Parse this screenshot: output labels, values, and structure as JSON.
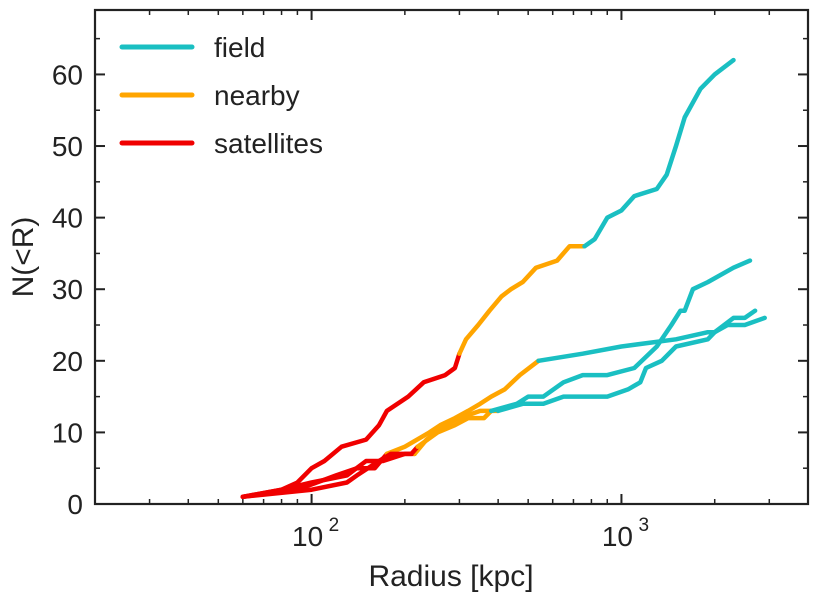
{
  "chart_data": {
    "type": "line",
    "title": "",
    "xlabel": "Radius [kpc]",
    "ylabel": "N(<R)",
    "xscale": "log",
    "xlim": [
      20,
      4000
    ],
    "ylim": [
      0,
      69
    ],
    "x_major_ticks": [
      {
        "value": 100,
        "base": "10",
        "exp": "2"
      },
      {
        "value": 1000,
        "base": "10",
        "exp": "3"
      }
    ],
    "y_ticks": [
      {
        "value": 0,
        "label": "0"
      },
      {
        "value": 10,
        "label": "10"
      },
      {
        "value": 20,
        "label": "20"
      },
      {
        "value": 30,
        "label": "30"
      },
      {
        "value": 40,
        "label": "40"
      },
      {
        "value": 50,
        "label": "50"
      },
      {
        "value": 60,
        "label": "60"
      }
    ],
    "legend": {
      "position": "top-left",
      "entries": [
        {
          "name": "field",
          "color": "#1ABFC2"
        },
        {
          "name": "nearby",
          "color": "#FFA500"
        },
        {
          "name": "satellites",
          "color": "#F00000"
        }
      ]
    },
    "curves": [
      {
        "name": "curve-A",
        "segments": [
          {
            "category": "satellites",
            "points": [
              [
                60,
                1
              ],
              [
                80,
                2
              ],
              [
                90,
                3
              ],
              [
                100,
                5
              ],
              [
                110,
                6
              ],
              [
                125,
                8
              ],
              [
                150,
                9
              ],
              [
                165,
                11
              ],
              [
                175,
                13
              ],
              [
                205,
                15
              ],
              [
                230,
                17
              ],
              [
                270,
                18
              ],
              [
                290,
                19
              ],
              [
                300,
                21
              ]
            ]
          },
          {
            "category": "nearby",
            "points": [
              [
                300,
                21
              ],
              [
                315,
                23
              ],
              [
                345,
                25
              ],
              [
                375,
                27
              ],
              [
                410,
                29
              ],
              [
                440,
                30
              ],
              [
                480,
                31
              ],
              [
                530,
                33
              ],
              [
                620,
                34
              ],
              [
                680,
                36
              ],
              [
                760,
                36
              ]
            ]
          },
          {
            "category": "field",
            "points": [
              [
                760,
                36
              ],
              [
                820,
                37
              ],
              [
                900,
                40
              ],
              [
                1000,
                41
              ],
              [
                1100,
                43
              ],
              [
                1300,
                44
              ],
              [
                1400,
                46
              ],
              [
                1500,
                50
              ],
              [
                1600,
                54
              ],
              [
                1800,
                58
              ],
              [
                2000,
                60
              ],
              [
                2300,
                62
              ]
            ]
          }
        ]
      },
      {
        "name": "curve-B",
        "segments": [
          {
            "category": "satellites",
            "points": [
              [
                60,
                1
              ],
              [
                90,
                2
              ],
              [
                120,
                4
              ],
              [
                140,
                5
              ],
              [
                160,
                5
              ],
              [
                175,
                7
              ]
            ]
          },
          {
            "category": "nearby",
            "points": [
              [
                175,
                7
              ],
              [
                200,
                8
              ],
              [
                240,
                10
              ],
              [
                260,
                11
              ],
              [
                290,
                12
              ],
              [
                320,
                13
              ],
              [
                350,
                14
              ],
              [
                380,
                15
              ],
              [
                420,
                16
              ],
              [
                470,
                18
              ],
              [
                540,
                20
              ]
            ]
          },
          {
            "category": "field",
            "points": [
              [
                540,
                20
              ],
              [
                750,
                21
              ],
              [
                1000,
                22
              ],
              [
                1500,
                23
              ],
              [
                1900,
                24
              ],
              [
                2000,
                24
              ],
              [
                2200,
                25
              ],
              [
                2500,
                25
              ],
              [
                2900,
                26
              ]
            ]
          }
        ]
      },
      {
        "name": "curve-C",
        "segments": [
          {
            "category": "satellites",
            "points": [
              [
                60,
                1
              ],
              [
                80,
                2
              ],
              [
                100,
                3
              ],
              [
                130,
                4
              ],
              [
                150,
                6
              ],
              [
                170,
                6
              ],
              [
                200,
                7
              ],
              [
                215,
                7
              ]
            ]
          },
          {
            "category": "nearby",
            "points": [
              [
                215,
                7
              ],
              [
                235,
                9
              ],
              [
                270,
                11
              ],
              [
                300,
                12
              ],
              [
                350,
                13
              ],
              [
                400,
                13
              ]
            ]
          },
          {
            "category": "field",
            "points": [
              [
                400,
                13
              ],
              [
                480,
                14
              ],
              [
                560,
                14
              ],
              [
                650,
                15
              ],
              [
                760,
                15
              ],
              [
                900,
                15
              ],
              [
                1050,
                16
              ],
              [
                1150,
                17
              ],
              [
                1200,
                19
              ],
              [
                1350,
                20
              ],
              [
                1500,
                22
              ],
              [
                1900,
                23
              ],
              [
                2000,
                24
              ],
              [
                2300,
                26
              ],
              [
                2500,
                26
              ],
              [
                2700,
                27
              ]
            ]
          }
        ]
      },
      {
        "name": "curve-D",
        "segments": [
          {
            "category": "satellites",
            "points": [
              [
                60,
                1
              ],
              [
                100,
                2
              ],
              [
                130,
                3
              ],
              [
                140,
                4
              ],
              [
                165,
                6
              ],
              [
                180,
                7
              ],
              [
                200,
                7
              ],
              [
                210,
                7
              ],
              [
                220,
                8
              ]
            ]
          },
          {
            "category": "nearby",
            "points": [
              [
                220,
                8
              ],
              [
                255,
                10
              ],
              [
                290,
                11
              ],
              [
                320,
                12
              ],
              [
                360,
                12
              ],
              [
                380,
                13
              ]
            ]
          },
          {
            "category": "field",
            "points": [
              [
                380,
                13
              ],
              [
                460,
                14
              ],
              [
                500,
                15
              ],
              [
                560,
                15
              ],
              [
                650,
                17
              ],
              [
                750,
                18
              ],
              [
                900,
                18
              ],
              [
                1100,
                19
              ],
              [
                1300,
                22
              ],
              [
                1450,
                25
              ],
              [
                1550,
                27
              ],
              [
                1600,
                27
              ],
              [
                1700,
                30
              ],
              [
                1900,
                31
              ],
              [
                2300,
                33
              ],
              [
                2600,
                34
              ]
            ]
          }
        ]
      }
    ]
  }
}
